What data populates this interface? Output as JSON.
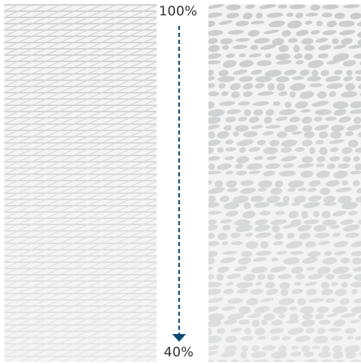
{
  "scale": {
    "top_label": "100%",
    "bottom_label": "40%",
    "top_value": 100,
    "bottom_value": 40,
    "direction": "down"
  },
  "colors": {
    "arrow": "#0c4a78",
    "swatch_strong": "#c9cacb",
    "swatch_light": "#e9eaea",
    "label_text": "#333333",
    "background": "#ffffff"
  },
  "swatches": {
    "left": {
      "pattern": "diagonal-crosshatch"
    },
    "right": {
      "pattern": "mottled-speckle"
    }
  }
}
